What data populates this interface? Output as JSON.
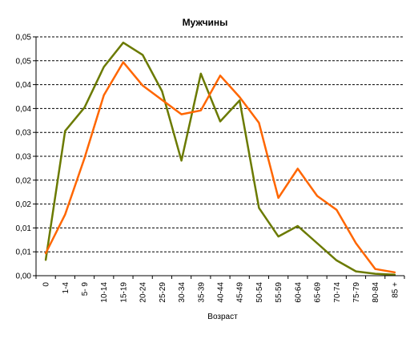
{
  "chart_data": {
    "type": "line",
    "title": "Мужчины",
    "xlabel": "Возраст",
    "ylabel": "",
    "categories": [
      "0",
      "1-4",
      "5- 9",
      "10-14",
      "15-19",
      "20-24",
      "25-29",
      "30-34",
      "35-39",
      "40-44",
      "45-49",
      "50-54",
      "55-59",
      "60-64",
      "65-69",
      "70-74",
      "75-79",
      "80-84",
      "85 +"
    ],
    "ylim": [
      0,
      0.05
    ],
    "yticks": [
      0,
      0.005,
      0.01,
      0.015,
      0.02,
      0.025,
      0.03,
      0.035,
      0.04,
      0.045,
      0.05
    ],
    "ytick_labels": [
      "0,00",
      "0,01",
      "0,01",
      "0,02",
      "0,02",
      "0,03",
      "0,03",
      "0,04",
      "0,04",
      "0,05",
      "0,05"
    ],
    "grid": true,
    "series": [
      {
        "color": "#6b7a00",
        "values": [
          0.0033,
          0.0303,
          0.0352,
          0.0437,
          0.0488,
          0.0462,
          0.0386,
          0.0241,
          0.0423,
          0.0323,
          0.0367,
          0.0142,
          0.0082,
          0.0104,
          0.0068,
          0.0032,
          0.0009,
          0.0004,
          0.0002
        ]
      },
      {
        "color": "#ff6600",
        "values": [
          0.0047,
          0.0128,
          0.0246,
          0.0378,
          0.0447,
          0.0398,
          0.0368,
          0.0338,
          0.0346,
          0.0419,
          0.0374,
          0.032,
          0.0163,
          0.0224,
          0.0167,
          0.0138,
          0.0068,
          0.0014,
          0.0007
        ]
      }
    ]
  }
}
